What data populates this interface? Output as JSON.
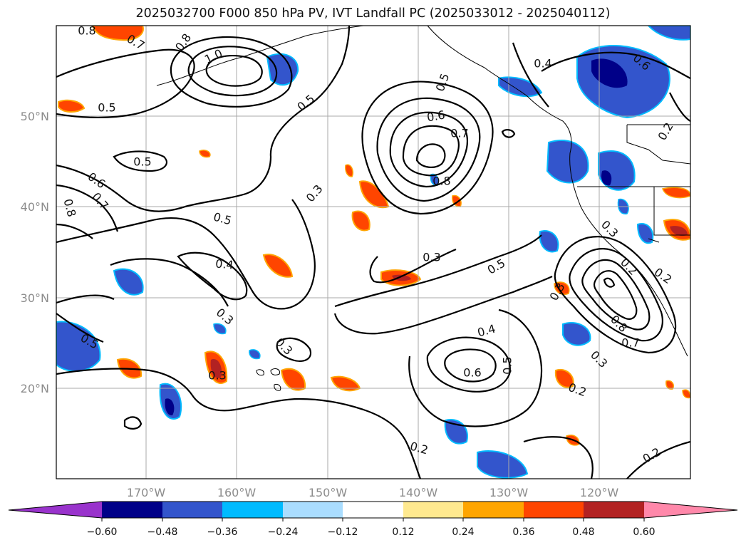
{
  "title": "2025032700 F000 850 hPa PV, IVT Landfall PC (2025033012 - 2025040112)",
  "map": {
    "lat_ticks": [
      "50°N",
      "40°N",
      "30°N",
      "20°N"
    ],
    "lon_ticks": [
      "170°W",
      "160°W",
      "150°W",
      "140°W",
      "130°W",
      "120°W"
    ],
    "contour_labels": [
      "0.8",
      "0.7",
      "0.8",
      "1.0",
      "0.5",
      "0.5",
      "0.4",
      "0.6",
      "0.5",
      "0.3",
      "0.5",
      "0.6",
      "0.7",
      "0.8",
      "0.5",
      "0.6",
      "0.7",
      "0.8",
      "0.3",
      "0.4",
      "0.5",
      "0.3",
      "0.5",
      "0.3",
      "0.3",
      "0.2",
      "0.2",
      "0.4",
      "0.6",
      "0.5",
      "0.3",
      "0.8",
      "0.7",
      "0.3",
      "0.3",
      "0.2",
      "0.2",
      "0.2",
      "0.2"
    ]
  },
  "colorbar": {
    "tick_labels": [
      "−0.60",
      "−0.48",
      "−0.36",
      "−0.24",
      "−0.12",
      "0.12",
      "0.24",
      "0.36",
      "0.48",
      "0.60"
    ],
    "colors": [
      "#9933cc",
      "#000088",
      "#3355cc",
      "#00bbff",
      "#aaddff",
      "#ffffff",
      "#ffe98f",
      "#ffa500",
      "#ff4500",
      "#b22222",
      "#ff88aa"
    ]
  }
}
